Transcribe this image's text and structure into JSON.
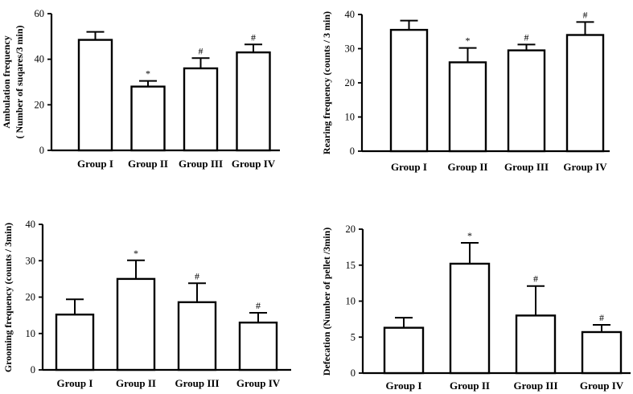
{
  "chart_data": [
    {
      "type": "bar",
      "ylabel": [
        "Ambulation frequency",
        "( Number of  suqares/3 min)"
      ],
      "categories": [
        "Group I",
        "Group II",
        "Group III",
        "Group IV"
      ],
      "values": [
        48.5,
        28,
        36,
        43
      ],
      "errors": [
        3.5,
        2.5,
        4.5,
        3.5
      ],
      "significance": [
        "",
        "*",
        "#",
        "#"
      ],
      "ylim": [
        0,
        60
      ],
      "yticks": [
        0,
        20,
        40,
        60
      ]
    },
    {
      "type": "bar",
      "ylabel": [
        "Rearing frequency (counts / 3 min)"
      ],
      "categories": [
        "Group I",
        "Group II",
        "Group III",
        "Group IV"
      ],
      "values": [
        35.5,
        26,
        29.5,
        34
      ],
      "errors": [
        2.7,
        4.2,
        1.7,
        3.8
      ],
      "significance": [
        "",
        "*",
        "#",
        "#"
      ],
      "ylim": [
        0,
        40
      ],
      "yticks": [
        0,
        10,
        20,
        30,
        40
      ]
    },
    {
      "type": "bar",
      "ylabel": [
        "Grooming frequency (counts / 3min)"
      ],
      "categories": [
        "Group I",
        "Group II",
        "Group III",
        "Group IV"
      ],
      "values": [
        15.2,
        25,
        18.6,
        13
      ],
      "errors": [
        4.2,
        5.1,
        5.2,
        2.7
      ],
      "significance": [
        "",
        "*",
        "#",
        "#"
      ],
      "ylim": [
        0,
        40
      ],
      "yticks": [
        0,
        10,
        20,
        30,
        40
      ]
    },
    {
      "type": "bar",
      "ylabel": [
        "Defecation (Number of pellet /3min)"
      ],
      "categories": [
        "Group I",
        "Group II",
        "Group III",
        "Group IV"
      ],
      "values": [
        6.3,
        15.2,
        8,
        5.7
      ],
      "errors": [
        1.4,
        2.9,
        4.1,
        1
      ],
      "significance": [
        "",
        "*",
        "#",
        "#"
      ],
      "ylim": [
        0,
        20
      ],
      "yticks": [
        0,
        5,
        10,
        15,
        20
      ]
    }
  ]
}
